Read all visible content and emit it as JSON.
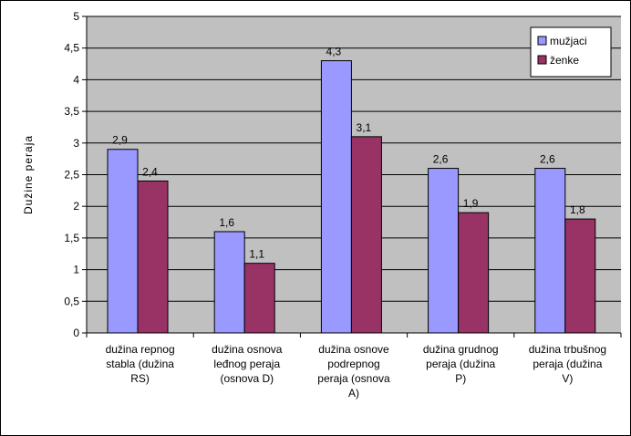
{
  "chart_data": {
    "type": "bar",
    "title": "",
    "xlabel": "",
    "ylabel": "Dužine peraja",
    "ylim": [
      0,
      5
    ],
    "yticks": [
      "0",
      "0,5",
      "1",
      "1,5",
      "2",
      "2,5",
      "3",
      "3,5",
      "4",
      "4,5",
      "5"
    ],
    "grid": true,
    "legend_position": "top-right",
    "categories": [
      [
        "dužina repnog",
        "stabla (dužina",
        "RS)"
      ],
      [
        "dužina osnova",
        "leđnog peraja",
        "(osnova D)"
      ],
      [
        "dužina osnove",
        "podrepnog",
        "peraja (osnova",
        "A)"
      ],
      [
        "dužina grudnog",
        "peraja (dužina",
        "P)"
      ],
      [
        "dužina trbušnog",
        "peraja (dužina",
        "V)"
      ]
    ],
    "series": [
      {
        "name": "mužjaci",
        "color": "#9999ff",
        "values": [
          2.9,
          1.6,
          4.3,
          2.6,
          2.6
        ],
        "labels": [
          "2,9",
          "1,6",
          "4,3",
          "2,6",
          "2,6"
        ]
      },
      {
        "name": "ženke",
        "color": "#993366",
        "values": [
          2.4,
          1.1,
          3.1,
          1.9,
          1.8
        ],
        "labels": [
          "2,4",
          "1,1",
          "3,1",
          "1,9",
          "1,8"
        ]
      }
    ],
    "plot_background": "#c0c0c0"
  }
}
